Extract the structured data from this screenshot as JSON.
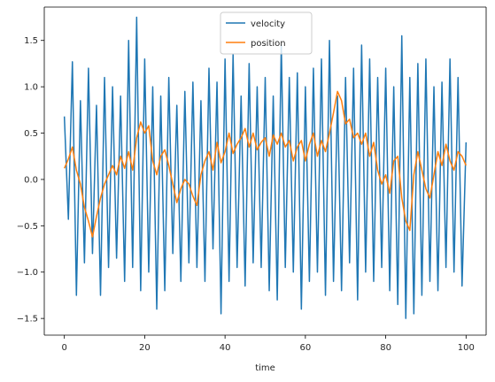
{
  "chart_data": {
    "type": "line",
    "xlabel": "time",
    "ylabel": "",
    "title": "",
    "xlim": [
      -5,
      105
    ],
    "ylim": [
      -1.68,
      1.86
    ],
    "xticks": [
      0,
      20,
      40,
      60,
      80,
      100
    ],
    "xtick_labels": [
      "0",
      "20",
      "40",
      "60",
      "80",
      "100"
    ],
    "yticks": [
      -1.5,
      -1.0,
      -0.5,
      0.0,
      0.5,
      1.0,
      1.5
    ],
    "ytick_labels": [
      "−1.5",
      "−1.0",
      "−0.5",
      "0.0",
      "0.5",
      "1.0",
      "1.5"
    ],
    "grid": false,
    "legend_position": "top-center",
    "series": [
      {
        "name": "velocity",
        "color": "#1f77b4",
        "x": [
          0,
          1,
          2,
          3,
          4,
          5,
          6,
          7,
          8,
          9,
          10,
          11,
          12,
          13,
          14,
          15,
          16,
          17,
          18,
          19,
          20,
          21,
          22,
          23,
          24,
          25,
          26,
          27,
          28,
          29,
          30,
          31,
          32,
          33,
          34,
          35,
          36,
          37,
          38,
          39,
          40,
          41,
          42,
          43,
          44,
          45,
          46,
          47,
          48,
          49,
          50,
          51,
          52,
          53,
          54,
          55,
          56,
          57,
          58,
          59,
          60,
          61,
          62,
          63,
          64,
          65,
          66,
          67,
          68,
          69,
          70,
          71,
          72,
          73,
          74,
          75,
          76,
          77,
          78,
          79,
          80,
          81,
          82,
          83,
          84,
          85,
          86,
          87,
          88,
          89,
          90,
          91,
          92,
          93,
          94,
          95,
          96,
          97,
          98,
          99,
          100
        ],
        "y": [
          0.68,
          -0.43,
          1.27,
          -1.25,
          0.85,
          -0.9,
          1.2,
          -0.8,
          0.8,
          -1.25,
          1.1,
          -0.95,
          1.0,
          -0.85,
          0.9,
          -1.1,
          1.5,
          -0.95,
          1.75,
          -1.2,
          1.3,
          -1.0,
          1.0,
          -1.4,
          0.9,
          -1.2,
          1.1,
          -0.8,
          0.8,
          -1.1,
          0.95,
          -0.9,
          1.05,
          -0.95,
          0.85,
          -1.1,
          1.2,
          -0.75,
          1.05,
          -1.45,
          1.3,
          -1.1,
          1.35,
          -0.95,
          0.9,
          -1.15,
          1.25,
          -0.9,
          1.0,
          -0.95,
          1.1,
          -1.2,
          0.9,
          -1.3,
          1.45,
          -0.95,
          1.1,
          -1.0,
          1.15,
          -1.4,
          1.0,
          -1.1,
          1.2,
          -1.0,
          1.3,
          -1.25,
          1.5,
          -1.1,
          0.9,
          -1.2,
          1.1,
          -0.9,
          1.2,
          -1.3,
          1.45,
          -1.0,
          1.3,
          -1.1,
          1.1,
          -0.95,
          1.2,
          -1.2,
          1.0,
          -1.35,
          1.55,
          -1.5,
          1.1,
          -1.45,
          1.25,
          -1.25,
          1.3,
          -1.1,
          1.0,
          -1.2,
          1.05,
          -0.95,
          1.3,
          -1.0,
          1.1,
          -1.15,
          0.4
        ]
      },
      {
        "name": "position",
        "color": "#ff7f0e",
        "x": [
          0,
          1,
          2,
          3,
          4,
          5,
          6,
          7,
          8,
          9,
          10,
          11,
          12,
          13,
          14,
          15,
          16,
          17,
          18,
          19,
          20,
          21,
          22,
          23,
          24,
          25,
          26,
          27,
          28,
          29,
          30,
          31,
          32,
          33,
          34,
          35,
          36,
          37,
          38,
          39,
          40,
          41,
          42,
          43,
          44,
          45,
          46,
          47,
          48,
          49,
          50,
          51,
          52,
          53,
          54,
          55,
          56,
          57,
          58,
          59,
          60,
          61,
          62,
          63,
          64,
          65,
          66,
          67,
          68,
          69,
          70,
          71,
          72,
          73,
          74,
          75,
          76,
          77,
          78,
          79,
          80,
          81,
          82,
          83,
          84,
          85,
          86,
          87,
          88,
          89,
          90,
          91,
          92,
          93,
          94,
          95,
          96,
          97,
          98,
          99,
          100
        ],
        "y": [
          0.12,
          0.22,
          0.35,
          0.1,
          -0.05,
          -0.3,
          -0.45,
          -0.62,
          -0.4,
          -0.2,
          -0.05,
          0.05,
          0.15,
          0.05,
          0.25,
          0.12,
          0.3,
          0.1,
          0.45,
          0.62,
          0.5,
          0.58,
          0.2,
          0.05,
          0.25,
          0.32,
          0.15,
          -0.05,
          -0.25,
          -0.1,
          0.0,
          -0.05,
          -0.18,
          -0.28,
          0.05,
          0.2,
          0.3,
          0.1,
          0.4,
          0.18,
          0.3,
          0.5,
          0.28,
          0.38,
          0.45,
          0.55,
          0.35,
          0.5,
          0.32,
          0.4,
          0.45,
          0.25,
          0.48,
          0.38,
          0.5,
          0.35,
          0.42,
          0.2,
          0.35,
          0.42,
          0.2,
          0.38,
          0.5,
          0.25,
          0.42,
          0.3,
          0.5,
          0.72,
          0.95,
          0.85,
          0.6,
          0.65,
          0.45,
          0.5,
          0.38,
          0.5,
          0.25,
          0.4,
          0.1,
          -0.05,
          0.05,
          -0.15,
          0.2,
          0.25,
          -0.2,
          -0.45,
          -0.55,
          0.05,
          0.3,
          0.1,
          -0.1,
          -0.2,
          0.05,
          0.3,
          0.15,
          0.38,
          0.2,
          0.1,
          0.3,
          0.25,
          0.15
        ]
      }
    ]
  }
}
